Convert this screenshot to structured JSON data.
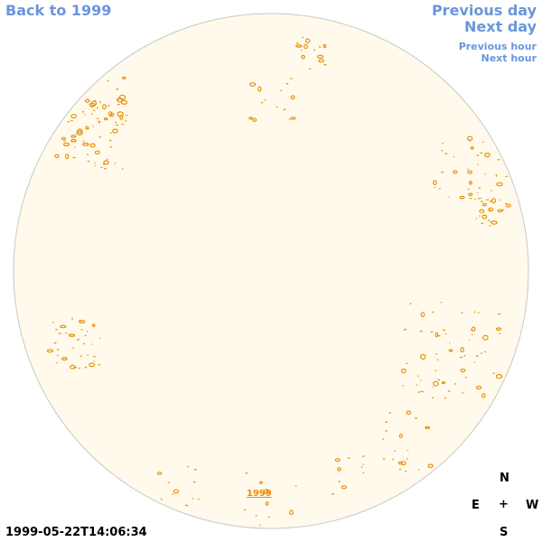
{
  "nav": {
    "back": "Back to 1999",
    "previous_day": "Previous day",
    "next_day": "Next day",
    "previous_hour": "Previous hour",
    "next_hour": "Next hour"
  },
  "year_link": "1999",
  "timestamp": "1999-05-22T14:06:34",
  "compass": {
    "north": "N",
    "east": "E",
    "center": "+",
    "west": "W",
    "south": "S"
  },
  "colors": {
    "link": "#6a96dc",
    "disk_fill": "#fffaeb",
    "disk_border": "#c8c8c8",
    "spot": "#e8900a"
  }
}
